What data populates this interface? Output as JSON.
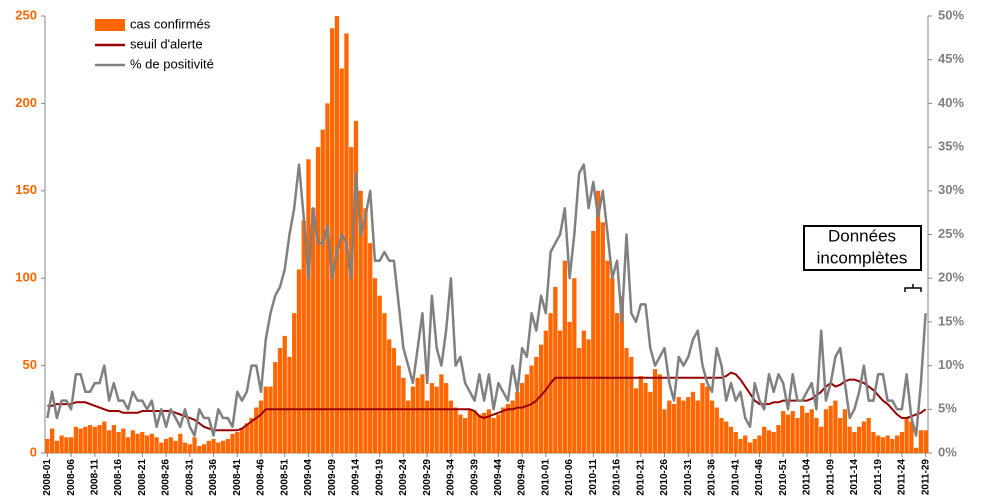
{
  "chart_data": {
    "type": "bar-line",
    "categories": [
      "2008-01",
      null,
      null,
      null,
      null,
      "2008-06",
      null,
      null,
      null,
      null,
      "2008-11",
      null,
      null,
      null,
      null,
      "2008-16",
      null,
      null,
      null,
      null,
      "2008-21",
      null,
      null,
      null,
      null,
      "2008-26",
      null,
      null,
      null,
      null,
      "2008-31",
      null,
      null,
      null,
      null,
      "2008-36",
      null,
      null,
      null,
      null,
      "2008-41",
      null,
      null,
      null,
      null,
      "2008-46",
      null,
      null,
      null,
      null,
      "2008-51",
      null,
      null,
      null,
      null,
      "2009-04",
      null,
      null,
      null,
      null,
      "2009-09",
      null,
      null,
      null,
      null,
      "2009-14",
      null,
      null,
      null,
      null,
      "2009-19",
      null,
      null,
      null,
      null,
      "2009-24",
      null,
      null,
      null,
      null,
      "2009-29",
      null,
      null,
      null,
      null,
      "2009-34",
      null,
      null,
      null,
      null,
      "2009-39",
      null,
      null,
      null,
      null,
      "2009-44",
      null,
      null,
      null,
      null,
      "2009-49",
      null,
      null,
      null,
      null,
      "2010-01",
      null,
      null,
      null,
      null,
      "2010-06",
      null,
      null,
      null,
      null,
      "2010-11",
      null,
      null,
      null,
      null,
      "2010-16",
      null,
      null,
      null,
      null,
      "2010-21",
      null,
      null,
      null,
      null,
      "2010-26",
      null,
      null,
      null,
      null,
      "2010-31",
      null,
      null,
      null,
      null,
      "2010-36",
      null,
      null,
      null,
      null,
      "2010-41",
      null,
      null,
      null,
      null,
      "2010-46",
      null,
      null,
      null,
      null,
      "2010-51",
      null,
      null,
      null,
      null,
      "2011-04",
      null,
      null,
      null,
      null,
      "2011-09",
      null,
      null,
      null,
      null,
      "2011-14",
      null,
      null,
      null,
      null,
      "2011-19",
      null,
      null,
      null,
      null,
      "2011-24",
      null,
      null,
      null,
      null,
      "2011-29"
    ],
    "series": [
      {
        "name": "cas confirmés",
        "kind": "bar",
        "color": "#ff6600",
        "values": [
          8,
          14,
          7,
          10,
          9,
          9,
          15,
          14,
          15,
          16,
          15,
          16,
          18,
          13,
          16,
          12,
          14,
          9,
          13,
          11,
          12,
          10,
          11,
          9,
          6,
          8,
          9,
          7,
          11,
          6,
          5,
          9,
          4,
          5,
          7,
          8,
          6,
          7,
          8,
          11,
          12,
          14,
          17,
          20,
          26,
          30,
          38,
          38,
          52,
          60,
          67,
          55,
          80,
          105,
          133,
          168,
          140,
          175,
          185,
          200,
          243,
          250,
          220,
          240,
          175,
          190,
          150,
          140,
          120,
          100,
          90,
          80,
          65,
          60,
          50,
          43,
          30,
          38,
          43,
          45,
          30,
          40,
          38,
          45,
          40,
          30,
          26,
          22,
          20,
          25,
          24,
          22,
          23,
          25,
          20,
          22,
          26,
          28,
          30,
          35,
          40,
          45,
          50,
          55,
          62,
          70,
          80,
          95,
          70,
          110,
          75,
          100,
          60,
          70,
          65,
          127,
          150,
          132,
          110,
          100,
          80,
          90,
          60,
          55,
          37,
          44,
          40,
          35,
          48,
          45,
          25,
          30,
          28,
          32,
          30,
          32,
          35,
          30,
          40,
          38,
          30,
          26,
          20,
          18,
          15,
          12,
          8,
          10,
          6,
          8,
          10,
          15,
          13,
          12,
          16,
          24,
          22,
          24,
          20,
          27,
          23,
          25,
          20,
          15,
          25,
          27,
          30,
          20,
          25,
          15,
          12,
          15,
          18,
          20,
          12,
          10,
          9,
          10,
          8,
          10,
          12,
          20,
          18,
          3,
          13,
          13
        ]
      },
      {
        "name": "seuil d'alerte",
        "kind": "line",
        "color": "#990000",
        "values": [
          27,
          27,
          28,
          28,
          28,
          28,
          29,
          29,
          29,
          28,
          27,
          26,
          25,
          24,
          24,
          24,
          23,
          23,
          23,
          23,
          24,
          24,
          24,
          24,
          24,
          24,
          24,
          23,
          22,
          21,
          20,
          19,
          17,
          15,
          14,
          13,
          13,
          13,
          13,
          13,
          13,
          14,
          16,
          18,
          20,
          22,
          25,
          25,
          25,
          25,
          25,
          25,
          25,
          25,
          25,
          25,
          25,
          25,
          25,
          25,
          25,
          25,
          25,
          25,
          25,
          25,
          25,
          25,
          25,
          25,
          25,
          25,
          25,
          25,
          25,
          25,
          25,
          25,
          25,
          25,
          25,
          25,
          25,
          25,
          25,
          25,
          25,
          25,
          25,
          25,
          24,
          21,
          20,
          21,
          22,
          23,
          24,
          25,
          25,
          26,
          26,
          27,
          28,
          30,
          33,
          36,
          40,
          43,
          43,
          43,
          43,
          43,
          43,
          43,
          43,
          43,
          43,
          43,
          43,
          43,
          43,
          43,
          43,
          43,
          43,
          43,
          43,
          43,
          43,
          43,
          43,
          43,
          43,
          43,
          43,
          43,
          43,
          43,
          43,
          43,
          43,
          43,
          43,
          44,
          46,
          45,
          42,
          38,
          34,
          30,
          28,
          28,
          28,
          29,
          29,
          30,
          30,
          30,
          30,
          30,
          30,
          31,
          33,
          35,
          38,
          40,
          38,
          39,
          41,
          42,
          42,
          41,
          40,
          38,
          36,
          33,
          30,
          28,
          25,
          22,
          20,
          20,
          21,
          22,
          23,
          25
        ]
      },
      {
        "name": "% de positivité",
        "kind": "line",
        "axis": "y2",
        "color": "#808080",
        "values": [
          4,
          7,
          4,
          6,
          6,
          5,
          9,
          9,
          7,
          7,
          8,
          8,
          10,
          6,
          8,
          6,
          6,
          5,
          7,
          6,
          6,
          5,
          6,
          3,
          5,
          3,
          5,
          4,
          3,
          5,
          3,
          2,
          5,
          4,
          4,
          2,
          5,
          4,
          4,
          3,
          7,
          6,
          7,
          10,
          10,
          7,
          13,
          16,
          18,
          19,
          21,
          25,
          28,
          33,
          27,
          20,
          28,
          24,
          24,
          26,
          20,
          23,
          25,
          24,
          20,
          32,
          25,
          27,
          30,
          22,
          22,
          23,
          22,
          22,
          17,
          12,
          10,
          8,
          12,
          16,
          8,
          18,
          12,
          10,
          14,
          20,
          10,
          11,
          8,
          7,
          6,
          9,
          6,
          9,
          5,
          8,
          7,
          6,
          10,
          7,
          12,
          11,
          16,
          14,
          18,
          16,
          23,
          24,
          25,
          28,
          20,
          25,
          32,
          33,
          28,
          31,
          27,
          30,
          25,
          20,
          22,
          15,
          25,
          16,
          15,
          17,
          17,
          12,
          10,
          11,
          12,
          8,
          6,
          11,
          10,
          11,
          13,
          14,
          10,
          8,
          7,
          12,
          10,
          6,
          8,
          6,
          7,
          4,
          3,
          8,
          6,
          5,
          9,
          7,
          9,
          8,
          5,
          9,
          6,
          6,
          7,
          8,
          5,
          14,
          6,
          8,
          11,
          12,
          8,
          4,
          5,
          7,
          10,
          6,
          6,
          9,
          9,
          6,
          6,
          5,
          5,
          9,
          4,
          2,
          8,
          16
        ]
      }
    ],
    "ylim": [
      0,
      250
    ],
    "yticks": [
      0,
      50,
      100,
      150,
      200,
      250
    ],
    "y2lim": [
      0,
      50
    ],
    "y2ticks": [
      {
        "value": 0,
        "label": "0%"
      },
      {
        "value": 5,
        "label": "5%"
      },
      {
        "value": 10,
        "label": "10%"
      },
      {
        "value": 15,
        "label": "15%"
      },
      {
        "value": 20,
        "label": "20%"
      },
      {
        "value": 25,
        "label": "25%"
      },
      {
        "value": 30,
        "label": "30%"
      },
      {
        "value": 35,
        "label": "35%"
      },
      {
        "value": 40,
        "label": "40%"
      },
      {
        "value": 45,
        "label": "45%"
      },
      {
        "value": 50,
        "label": "50%"
      }
    ],
    "legend": "top-left",
    "annotation": [
      "Données",
      "incomplètes"
    ]
  }
}
